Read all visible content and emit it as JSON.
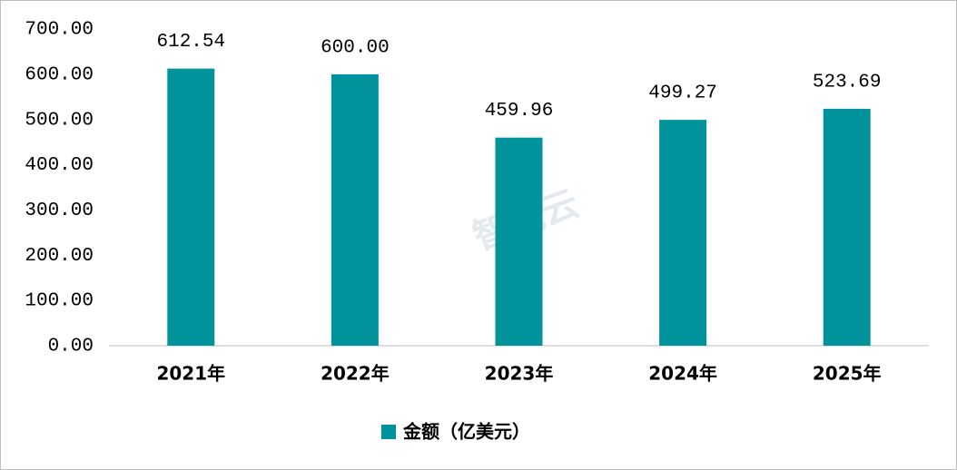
{
  "chart_data": {
    "type": "bar",
    "watermark": "智械云",
    "categories": [
      "2021年",
      "2022年",
      "2023年",
      "2024年",
      "2025年"
    ],
    "series": [
      {
        "name": "金额（亿美元）",
        "color": "#00939c",
        "values": [
          612.54,
          600,
          459.96,
          499.27,
          523.69
        ],
        "value_labels": [
          "612.54",
          "600.00",
          "459.96",
          "499.27",
          "523.69"
        ]
      }
    ],
    "ylim": [
      0,
      700
    ],
    "yticks": [
      {
        "value": 0,
        "label": "0.00"
      },
      {
        "value": 100,
        "label": "100.00"
      },
      {
        "value": 200,
        "label": "200.00"
      },
      {
        "value": 300,
        "label": "300.00"
      },
      {
        "value": 400,
        "label": "400.00"
      },
      {
        "value": 500,
        "label": "500.00"
      },
      {
        "value": 600,
        "label": "600.00"
      },
      {
        "value": 700,
        "label": "700.00"
      }
    ],
    "grid": false,
    "legend": "bottom"
  }
}
